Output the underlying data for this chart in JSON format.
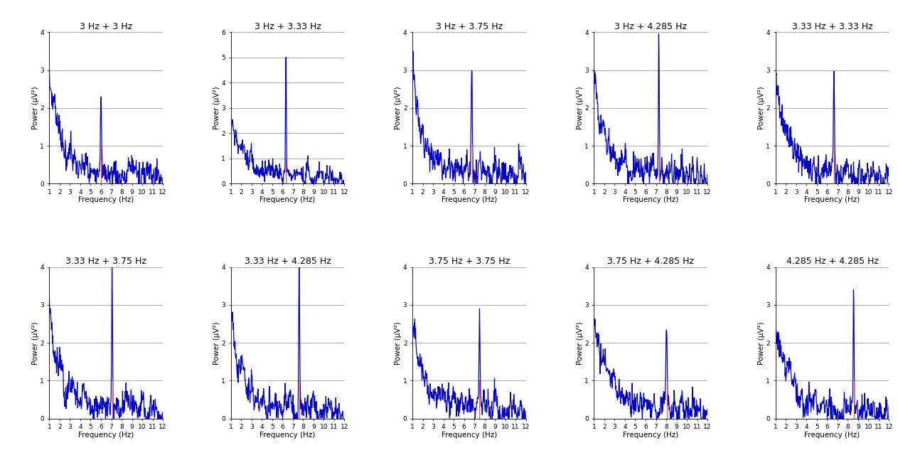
{
  "titles": [
    "3 Hz + 3 Hz",
    "3 Hz + 3.33 Hz",
    "3 Hz + 3.75 Hz",
    "3 Hz + 4.285 Hz",
    "3.33 Hz + 3.33 Hz",
    "3.33 Hz + 3.75 Hz",
    "3.33 Hz + 4.285 Hz",
    "3.75 Hz + 3.75 Hz",
    "3.75 Hz + 4.285 Hz",
    "4.285 Hz + 4.285 Hz"
  ],
  "ylims": [
    4,
    6,
    4,
    4,
    4,
    4,
    4,
    4,
    4,
    4
  ],
  "red_line_x": [
    6.0,
    6.33,
    6.75,
    7.285,
    6.66,
    7.08,
    7.615,
    7.5,
    8.035,
    8.57
  ],
  "red_line_ymax": [
    1.0,
    1.0,
    1.0,
    1.0,
    1.0,
    1.0,
    1.0,
    1.0,
    1.0,
    1.0
  ],
  "line_color": "#0000CC",
  "red_color": "#FF4444",
  "xlabel": "Frequency (Hz)",
  "ylabel": "Power (μV²)",
  "bg_color": "#ffffff",
  "title_fontsize": 9,
  "axis_fontsize": 7.5,
  "tick_fontsize": 6.5
}
